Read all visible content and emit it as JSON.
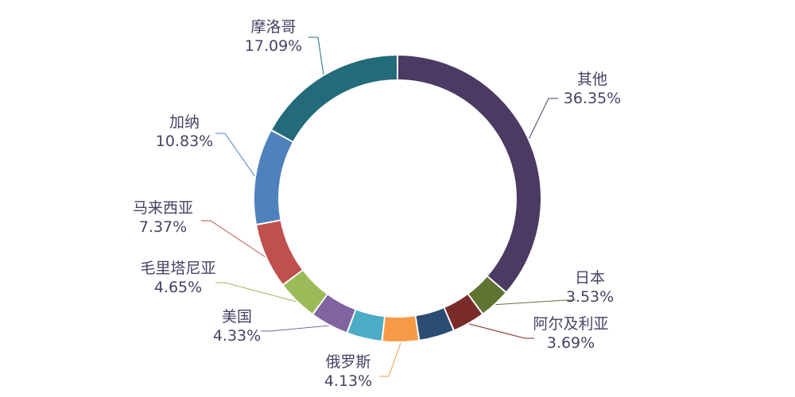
{
  "chart_data": {
    "type": "pie",
    "donut": true,
    "title": "",
    "legend": "none",
    "slices": [
      {
        "label": "其他",
        "percent_text": "36.35%",
        "value": 36.35,
        "color": "#4b3a62"
      },
      {
        "label": "日本",
        "percent_text": "3.53%",
        "value": 3.53,
        "color": "#5e7430"
      },
      {
        "label": "阿尔及利亚",
        "percent_text": "3.69%",
        "value": 3.69,
        "color": "#7a2c2a"
      },
      {
        "label": "",
        "percent_text": "",
        "value": 4.0,
        "color": "#2b4c73"
      },
      {
        "label": "俄罗斯",
        "percent_text": "4.13%",
        "value": 4.13,
        "color": "#f79a46"
      },
      {
        "label": "",
        "percent_text": "",
        "value": 4.0,
        "color": "#4bacc6"
      },
      {
        "label": "美国",
        "percent_text": "4.33%",
        "value": 4.33,
        "color": "#8064a2"
      },
      {
        "label": "毛里塔尼亚",
        "percent_text": "4.65%",
        "value": 4.65,
        "color": "#9bbb59"
      },
      {
        "label": "马来西亚",
        "percent_text": "7.37%",
        "value": 7.37,
        "color": "#c0504d"
      },
      {
        "label": "加纳",
        "percent_text": "10.83%",
        "value": 10.83,
        "color": "#4f81bd"
      },
      {
        "label": "摩洛哥",
        "percent_text": "17.09%",
        "value": 17.09,
        "color": "#236b7a"
      }
    ]
  }
}
